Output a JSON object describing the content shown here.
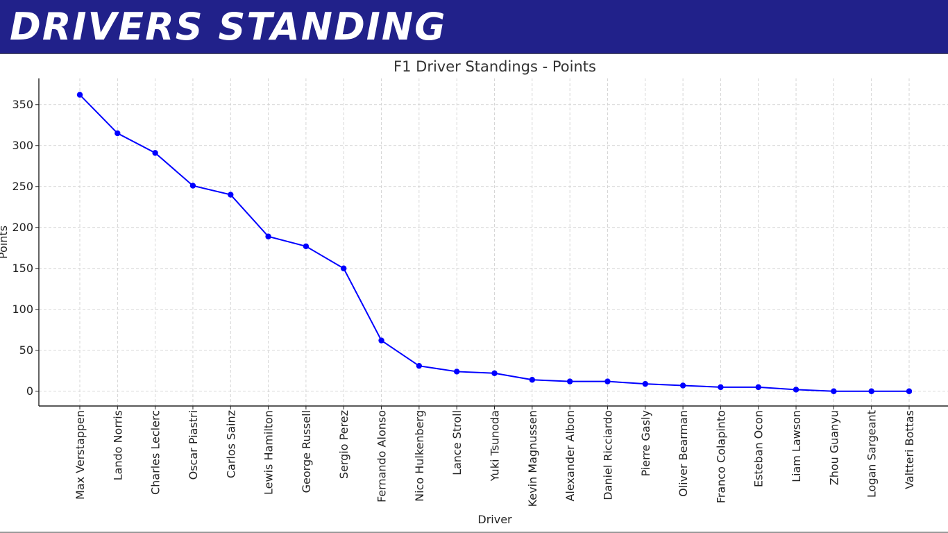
{
  "header": {
    "title": "Drivers Standing",
    "background": "#21218a",
    "text_color": "#ffffff"
  },
  "chart_data": {
    "type": "line",
    "title": "F1 Driver Standings - Points",
    "xlabel": "Driver",
    "ylabel": "Points",
    "ylim": [
      -18,
      382
    ],
    "yticks": [
      0,
      50,
      100,
      150,
      200,
      250,
      300,
      350
    ],
    "grid": true,
    "line_color": "#0000ff",
    "categories": [
      "Max Verstappen",
      "Lando Norris",
      "Charles Leclerc",
      "Oscar Piastri",
      "Carlos Sainz",
      "Lewis Hamilton",
      "George Russell",
      "Sergio Perez",
      "Fernando Alonso",
      "Nico Hulkenberg",
      "Lance Stroll",
      "Yuki Tsunoda",
      "Kevin Magnussen",
      "Alexander Albon",
      "Daniel Ricciardo",
      "Pierre Gasly",
      "Oliver Bearman",
      "Franco Colapinto",
      "Esteban Ocon",
      "Liam Lawson",
      "Zhou Guanyu",
      "Logan Sargeant",
      "Valtteri Bottas"
    ],
    "series": [
      {
        "values": [
          362,
          315,
          291,
          251,
          240,
          189,
          177,
          150,
          62,
          31,
          24,
          22,
          14,
          12,
          12,
          9,
          7,
          5,
          5,
          2,
          0,
          0,
          0
        ]
      }
    ]
  }
}
